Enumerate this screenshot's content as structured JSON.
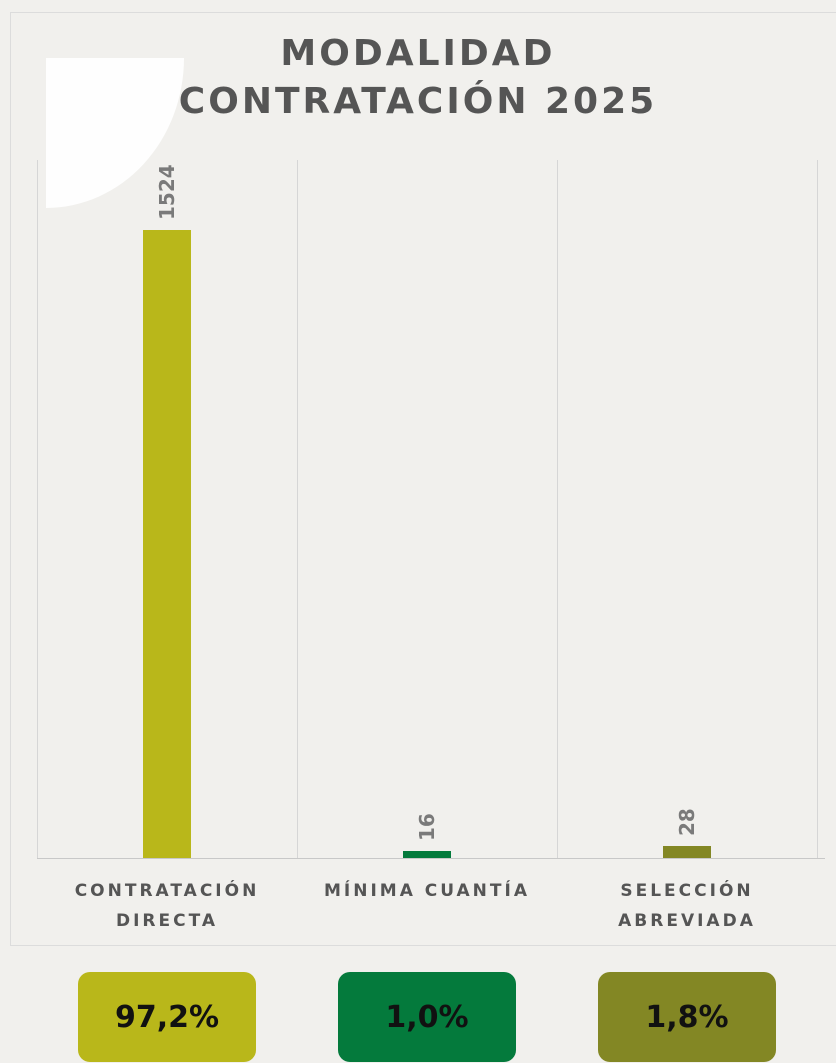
{
  "chart_data": {
    "type": "bar",
    "title": [
      "MODALIDAD",
      "CONTRATACIÓN 2025"
    ],
    "categories": [
      "CONTRATACIÓN DIRECTA",
      "MÍNIMA CUANTÍA",
      "SELECCIÓN ABREVIADA"
    ],
    "values": [
      1524,
      16,
      28
    ],
    "colors": [
      "#b9b71a",
      "#047a3c",
      "#838724"
    ],
    "shares": [
      97.2,
      1.0,
      1.8
    ],
    "share_labels": [
      "97,2%",
      "1,0%",
      "1,8%"
    ]
  }
}
